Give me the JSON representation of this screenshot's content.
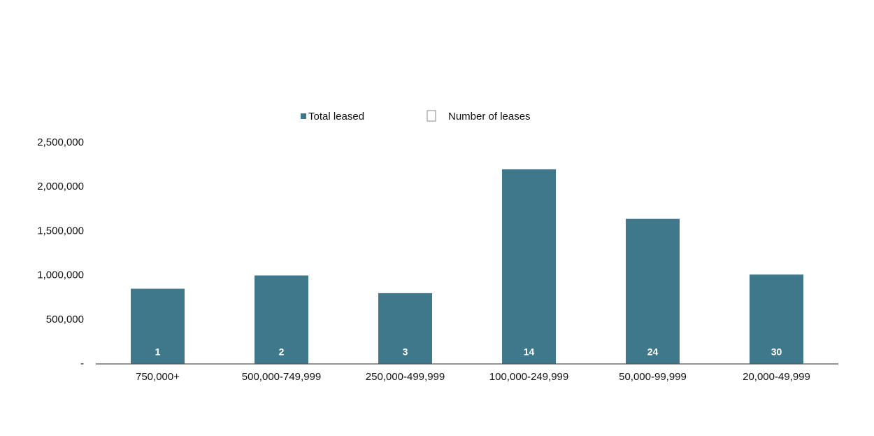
{
  "chart_data": {
    "type": "bar",
    "categories": [
      "750,000+",
      "500,000-749,999",
      "250,000-499,999",
      "100,000-249,999",
      "50,000-99,999",
      "20,000-49,999"
    ],
    "series": [
      {
        "name": "Total leased",
        "color": "#3f778b",
        "values": [
          850000,
          1000000,
          800000,
          2200000,
          1640000,
          1010000
        ]
      },
      {
        "name": "Number of leases",
        "color": "#ffffff",
        "values": [
          1,
          2,
          3,
          14,
          24,
          30
        ]
      }
    ],
    "ylim": [
      0,
      2500000
    ],
    "yticks": [
      {
        "value": 0,
        "label": "-"
      },
      {
        "value": 500000,
        "label": "500,000"
      },
      {
        "value": 1000000,
        "label": "1,000,000"
      },
      {
        "value": 1500000,
        "label": "1,500,000"
      },
      {
        "value": 2000000,
        "label": "2,000,000"
      },
      {
        "value": 2500000,
        "label": "2,500,000"
      }
    ],
    "grid": false,
    "legend": "top"
  }
}
